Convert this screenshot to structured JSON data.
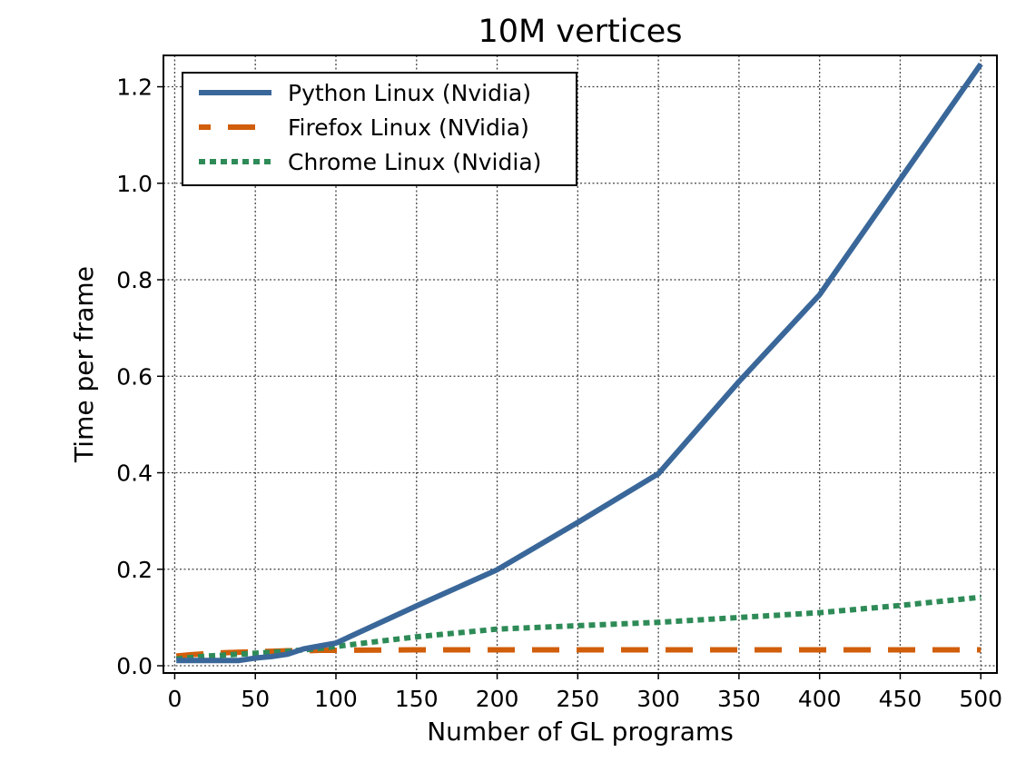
{
  "chart_data": {
    "type": "line",
    "title": "10M vertices",
    "xlabel": "Number of GL programs",
    "ylabel": "Time per frame",
    "xlim": [
      -7,
      510
    ],
    "ylim": [
      -0.015,
      1.265
    ],
    "x_ticks": [
      0,
      50,
      100,
      150,
      200,
      250,
      300,
      350,
      400,
      450,
      500
    ],
    "x_tick_labels": [
      "0",
      "50",
      "100",
      "150",
      "200",
      "250",
      "300",
      "350",
      "400",
      "450",
      "500"
    ],
    "y_ticks": [
      0.0,
      0.2,
      0.4,
      0.6,
      0.8,
      1.0,
      1.2
    ],
    "y_tick_labels": [
      "0.0",
      "0.2",
      "0.4",
      "0.6",
      "0.8",
      "1.0",
      "1.2"
    ],
    "grid": true,
    "legend_position": "top-left",
    "series": [
      {
        "name": "Python Linux (Nvidia)",
        "color": "#3a6799",
        "style": "solid",
        "x": [
          1,
          10,
          20,
          30,
          40,
          50,
          60,
          70,
          80,
          90,
          100,
          150,
          200,
          250,
          300,
          350,
          400,
          450,
          500
        ],
        "y": [
          0.011,
          0.011,
          0.011,
          0.011,
          0.011,
          0.016,
          0.019,
          0.024,
          0.035,
          0.041,
          0.047,
          0.124,
          0.199,
          0.297,
          0.398,
          0.589,
          0.769,
          1.008,
          1.247
        ]
      },
      {
        "name": "Firefox Linux (NVidia)",
        "color": "#d15e0a",
        "style": "dashed",
        "x": [
          1,
          10,
          20,
          30,
          40,
          50,
          60,
          70,
          80,
          90,
          100,
          150,
          200,
          250,
          300,
          350,
          400,
          450,
          500
        ],
        "y": [
          0.02,
          0.023,
          0.025,
          0.027,
          0.028,
          0.029,
          0.03,
          0.031,
          0.031,
          0.032,
          0.032,
          0.033,
          0.033,
          0.033,
          0.033,
          0.033,
          0.033,
          0.033,
          0.033
        ]
      },
      {
        "name": "Chrome Linux (Nvidia)",
        "color": "#2e8b57",
        "style": "dotted",
        "x": [
          1,
          10,
          20,
          30,
          40,
          50,
          60,
          70,
          80,
          90,
          100,
          150,
          200,
          250,
          300,
          350,
          400,
          450,
          500
        ],
        "y": [
          0.014,
          0.017,
          0.02,
          0.022,
          0.024,
          0.026,
          0.028,
          0.03,
          0.033,
          0.036,
          0.04,
          0.06,
          0.076,
          0.083,
          0.09,
          0.1,
          0.11,
          0.125,
          0.142
        ]
      }
    ]
  }
}
